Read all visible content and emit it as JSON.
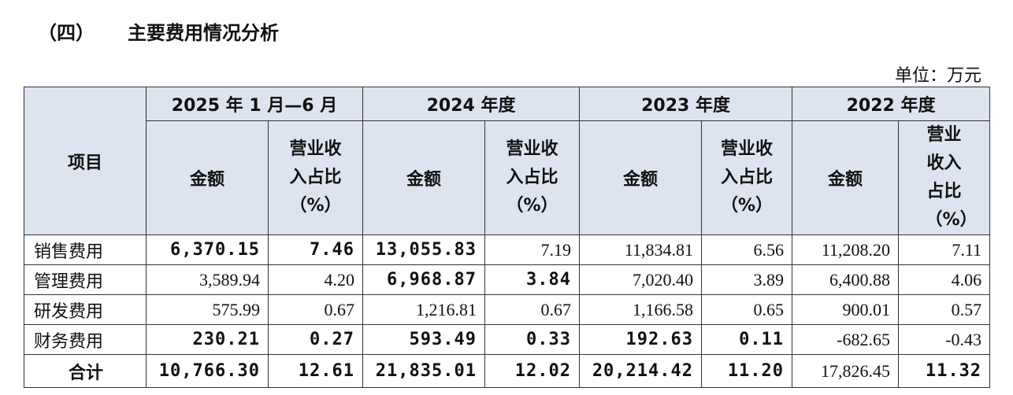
{
  "header": {
    "section_number": "（四）",
    "title": "主要费用情况分析"
  },
  "unit": "单位：万元",
  "table": {
    "item_header": "项目",
    "periods": [
      "2025 年 1 月—6 月",
      "2024 年度",
      "2023 年度",
      "2022 年度"
    ],
    "sub_headers": [
      "金额",
      "营业收入占比（%）",
      "金额",
      "营业收入占比（%）",
      "金额",
      "营业收入占比（%）",
      "金额",
      "营业收入占比（%）"
    ],
    "rows": [
      [
        "销售费用",
        "6,370.15",
        "7.46",
        "13,055.83",
        "7.19",
        "11,834.81",
        "6.56",
        "11,208.20",
        "7.11"
      ],
      [
        "管理费用",
        "3,589.94",
        "4.20",
        "6,968.87",
        "3.84",
        "7,020.40",
        "3.89",
        "6,400.88",
        "4.06"
      ],
      [
        "研发费用",
        "575.99",
        "0.67",
        "1,216.81",
        "0.67",
        "1,166.58",
        "0.65",
        "900.01",
        "0.57"
      ],
      [
        "财务费用",
        "230.21",
        "0.27",
        "593.49",
        "0.33",
        "192.63",
        "0.11",
        "-682.65",
        "-0.43"
      ],
      [
        "合计",
        "10,766.30",
        "12.61",
        "21,835.01",
        "12.02",
        "20,214.42",
        "11.20",
        "17,826.45",
        "11.32"
      ]
    ]
  }
}
